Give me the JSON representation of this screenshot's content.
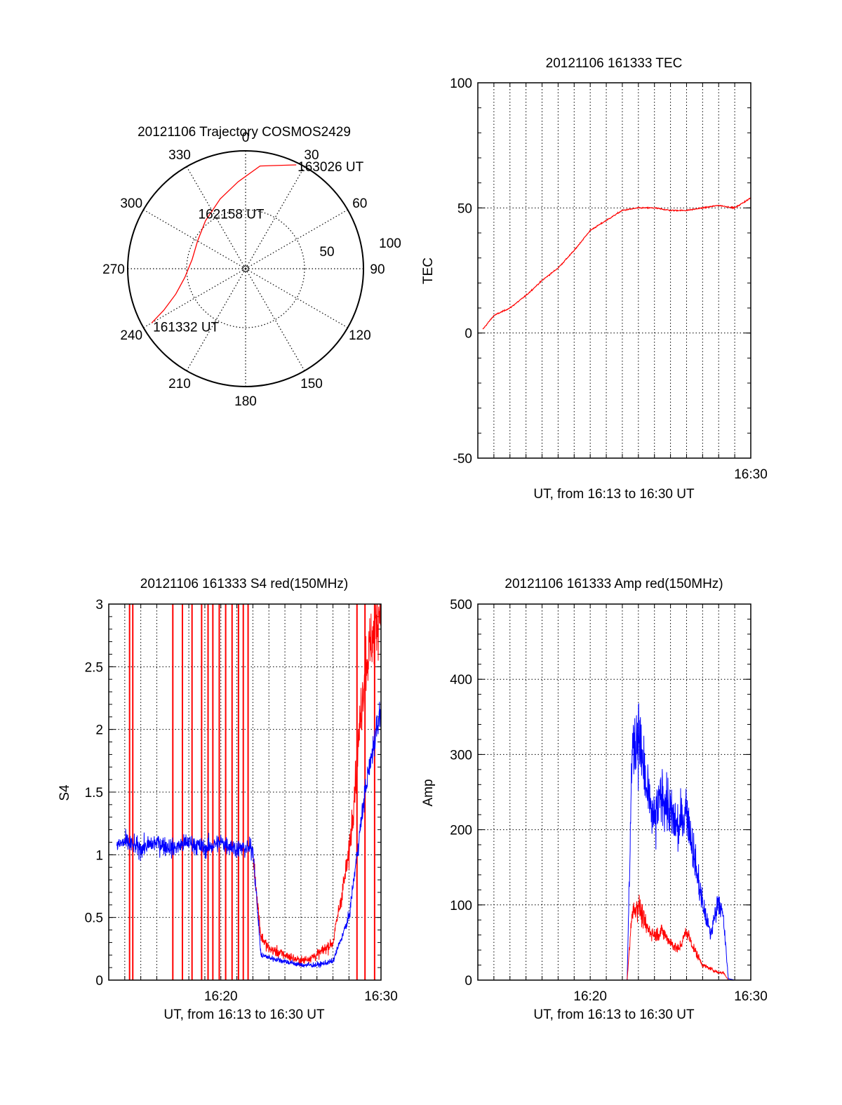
{
  "chart_data": [
    {
      "type": "polar",
      "title": "20121106 Trajectory COSMOS2429",
      "azimuth_labels": [
        "0",
        "30",
        "60",
        "90",
        "120",
        "150",
        "180",
        "210",
        "240",
        "270",
        "300",
        "330"
      ],
      "radial_labels": [
        "50",
        "100"
      ],
      "radial_range": [
        0,
        100
      ],
      "grid": true,
      "series": [
        {
          "color": "#ff0000",
          "points": [
            {
              "az": 240,
              "r": 92
            },
            {
              "az": 243,
              "r": 78
            },
            {
              "az": 250,
              "r": 63
            },
            {
              "az": 262,
              "r": 52
            },
            {
              "az": 280,
              "r": 46
            },
            {
              "az": 300,
              "r": 47
            },
            {
              "az": 320,
              "r": 53
            },
            {
              "az": 340,
              "r": 63
            },
            {
              "az": 355,
              "r": 74
            },
            {
              "az": 8,
              "r": 88
            },
            {
              "az": 26,
              "r": 98
            }
          ]
        }
      ],
      "annotations": [
        {
          "text": "163026 UT",
          "az": 26,
          "r": 98
        },
        {
          "text": "162158 UT",
          "az": 312,
          "r": 30
        },
        {
          "text": "161332 UT",
          "az": 240,
          "r": 92
        }
      ]
    },
    {
      "type": "line",
      "title": "20121106 161333 TEC",
      "ylabel": "TEC",
      "xlabel": "UT, from 16:13 to 16:30 UT",
      "xlim": [
        "16:13",
        "16:30"
      ],
      "ylim": [
        -50,
        100
      ],
      "yticks": [
        "100",
        "50",
        "0",
        "-50"
      ],
      "xticks": [
        "16:30"
      ],
      "grid": true,
      "series": [
        {
          "color": "#ff0000",
          "x": [
            "16:13",
            "16:14",
            "16:15",
            "16:16",
            "16:17",
            "16:18",
            "16:19",
            "16:20",
            "16:21",
            "16:22",
            "16:23",
            "16:24",
            "16:25",
            "16:26",
            "16:27",
            "16:28",
            "16:29",
            "16:30"
          ],
          "values": [
            -1,
            7,
            10,
            15,
            21,
            26,
            33,
            41,
            45,
            49,
            50,
            50,
            49,
            49,
            50,
            51,
            50,
            54
          ]
        }
      ]
    },
    {
      "type": "line",
      "title": "20121106 161333 S4 red(150MHz)",
      "ylabel": "S4",
      "xlabel": "UT, from 16:13 to 16:30 UT",
      "xlim": [
        "16:13",
        "16:30"
      ],
      "ylim": [
        0,
        3
      ],
      "yticks": [
        "3",
        "2.5",
        "2",
        "1.5",
        "1",
        "0.5",
        "0"
      ],
      "xticks": [
        "16:20",
        "16:30"
      ],
      "grid": true,
      "series": [
        {
          "color": "#0000ff",
          "x": [
            "16:13",
            "16:14",
            "16:15",
            "16:16",
            "16:17",
            "16:18",
            "16:19",
            "16:20",
            "16:21",
            "16:22",
            "16:22.5",
            "16:23",
            "16:24",
            "16:25",
            "16:26",
            "16:27",
            "16:28",
            "16:29",
            "16:30"
          ],
          "values": [
            1.05,
            1.1,
            1.05,
            1.1,
            1.05,
            1.1,
            1.05,
            1.1,
            1.05,
            1.05,
            0.2,
            0.18,
            0.15,
            0.12,
            0.12,
            0.15,
            0.5,
            1.5,
            2.2
          ]
        },
        {
          "color": "#ff0000",
          "x": [
            "16:22",
            "16:22.5",
            "16:23",
            "16:24",
            "16:25",
            "16:26",
            "16:27",
            "16:28",
            "16:29",
            "16:30"
          ],
          "values": [
            1.0,
            0.35,
            0.25,
            0.2,
            0.15,
            0.2,
            0.3,
            1.0,
            2.5,
            3.0
          ]
        }
      ],
      "spikes_red_x": [
        "16:14.3",
        "16:14.5",
        "16:17.0",
        "16:17.6",
        "16:18.2",
        "16:18.8",
        "16:19.2",
        "16:19.5",
        "16:19.9",
        "16:20.3",
        "16:20.7",
        "16:21.1",
        "16:21.4",
        "16:21.7",
        "16:28.5",
        "16:29.0",
        "16:29.6"
      ]
    },
    {
      "type": "line",
      "title": "20121106 161333 Amp red(150MHz)",
      "ylabel": "Amp",
      "xlabel": "UT, from 16:13 to 16:30 UT",
      "xlim": [
        "16:13",
        "16:30"
      ],
      "ylim": [
        0,
        500
      ],
      "yticks": [
        "500",
        "400",
        "300",
        "200",
        "100",
        "0"
      ],
      "xticks": [
        "16:20",
        "16:30"
      ],
      "grid": true,
      "series": [
        {
          "color": "#0000ff",
          "x": [
            "16:13",
            "16:20",
            "16:21",
            "16:22",
            "16:22.3",
            "16:22.6",
            "16:23",
            "16:23.5",
            "16:24",
            "16:24.5",
            "16:25",
            "16:25.5",
            "16:26",
            "16:26.5",
            "16:27",
            "16:27.5",
            "16:28",
            "16:28.3",
            "16:28.6",
            "16:29",
            "16:30"
          ],
          "values": [
            0,
            0,
            0,
            0,
            0,
            300,
            330,
            250,
            210,
            250,
            220,
            200,
            230,
            160,
            100,
            60,
            110,
            80,
            2,
            0,
            0
          ]
        },
        {
          "color": "#ff0000",
          "x": [
            "16:13",
            "16:20",
            "16:21",
            "16:22",
            "16:22.3",
            "16:22.6",
            "16:23",
            "16:23.5",
            "16:24",
            "16:24.5",
            "16:25",
            "16:25.5",
            "16:26",
            "16:26.5",
            "16:27",
            "16:27.5",
            "16:28",
            "16:28.3",
            "16:28.6",
            "16:29",
            "16:30"
          ],
          "values": [
            0,
            0,
            0,
            0,
            0,
            90,
            100,
            70,
            60,
            65,
            50,
            40,
            65,
            40,
            20,
            15,
            10,
            10,
            0,
            0,
            0
          ]
        }
      ]
    }
  ]
}
